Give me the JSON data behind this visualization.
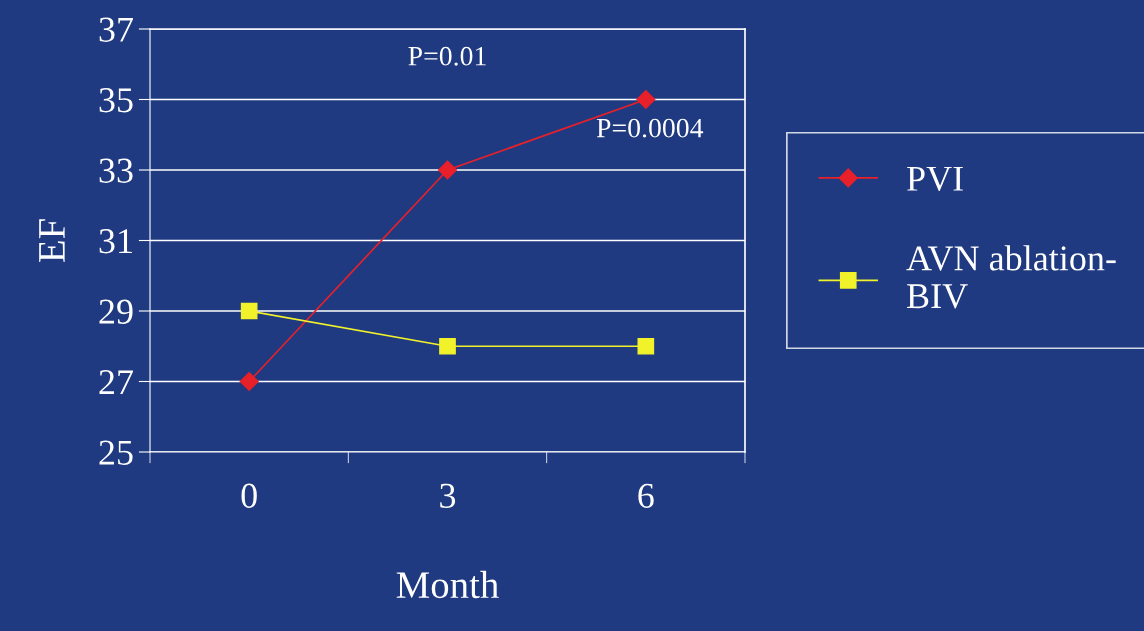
{
  "chart_data": {
    "type": "line",
    "xlabel": "Month",
    "ylabel": "EF",
    "categories": [
      "0",
      "3",
      "6"
    ],
    "series": [
      {
        "name": "PVI",
        "color": "#e8202a",
        "values": [
          27,
          33,
          35
        ],
        "marker": "diamond"
      },
      {
        "name": "AVN ablation-BIV",
        "color": "#f2f22a",
        "values": [
          29,
          28,
          28
        ],
        "marker": "square"
      }
    ],
    "ylim": [
      25,
      37
    ],
    "yticks": [
      25,
      27,
      29,
      31,
      33,
      35,
      37
    ],
    "grid": "y",
    "legend": "right",
    "annotations": [
      "P=0.01",
      "P=0.0004"
    ]
  }
}
